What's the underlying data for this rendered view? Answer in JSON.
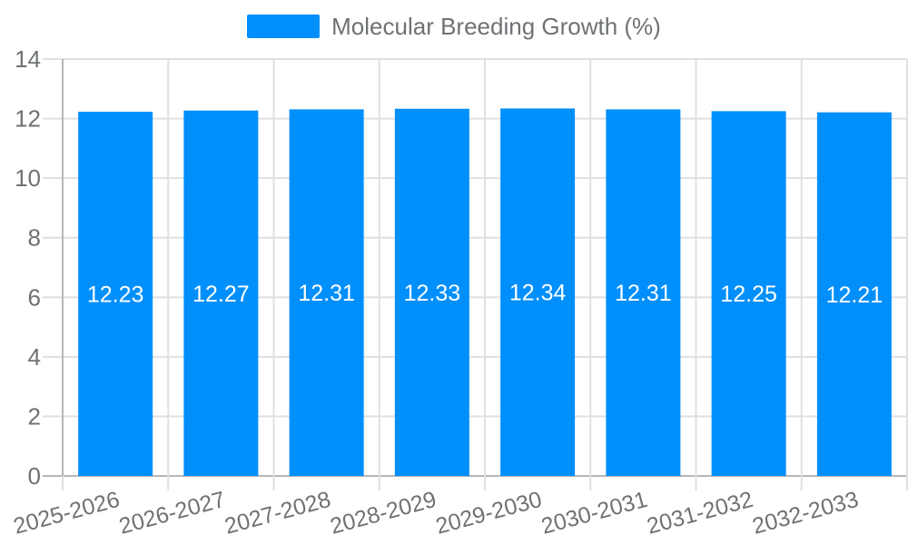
{
  "legend": {
    "label": "Molecular Breeding Growth (%)"
  },
  "colors": {
    "bar": "#008FFB",
    "grid": "#e0e0e0",
    "axis": "#b6b6b8",
    "label": "#6e7275",
    "data_label": "#ffffff",
    "background": "#ffffff"
  },
  "chart_data": {
    "type": "bar",
    "title": "Molecular Breeding Growth (%)",
    "categories": [
      "2025-2026",
      "2026-2027",
      "2027-2028",
      "2028-2029",
      "2029-2030",
      "2030-2031",
      "2031-2032",
      "2032-2033"
    ],
    "series": [
      {
        "name": "Molecular Breeding Growth (%)",
        "values": [
          12.23,
          12.27,
          12.31,
          12.33,
          12.34,
          12.31,
          12.25,
          12.21
        ]
      }
    ],
    "data_labels": [
      "12.23",
      "12.27",
      "12.31",
      "12.33",
      "12.34",
      "12.31",
      "12.25",
      "12.21"
    ],
    "ylim": [
      0,
      14
    ],
    "ytick_step": 2,
    "ytick_labels": [
      "0",
      "2",
      "4",
      "6",
      "8",
      "10",
      "12",
      "14"
    ],
    "xlabel": "",
    "ylabel": "",
    "grid": true,
    "legend_position": "top",
    "x_label_rotation": -15
  }
}
